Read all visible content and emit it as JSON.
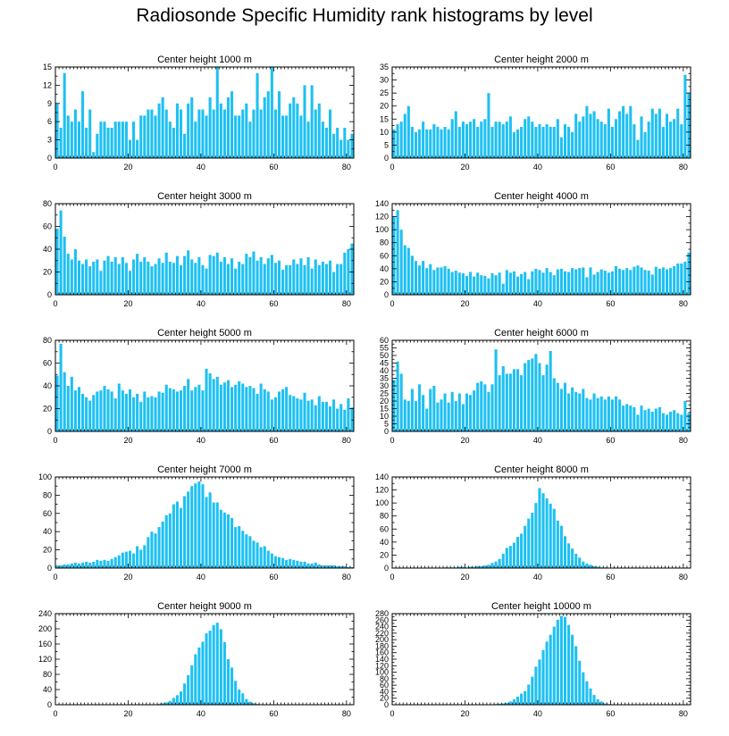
{
  "title": "Radiosonde Specific Humidity rank histograms by level",
  "bar_color": "#1ec0f2",
  "chart_data": [
    {
      "type": "bar",
      "title": "Center height 1000 m",
      "xlim": [
        0,
        82
      ],
      "ylim": [
        0,
        15
      ],
      "xticks": [
        0,
        20,
        40,
        60,
        80
      ],
      "yticks": [
        0,
        3,
        6,
        9,
        12,
        15
      ],
      "values": [
        9,
        5,
        14,
        7,
        6,
        8,
        6,
        11,
        5,
        8,
        1,
        4,
        6,
        6,
        5,
        5,
        6,
        6,
        6,
        6,
        3,
        6,
        3,
        7,
        7,
        8,
        8,
        7,
        9,
        10,
        8,
        6,
        5,
        9,
        8,
        4,
        9,
        10,
        6,
        8,
        8,
        7,
        10,
        8,
        15,
        9,
        8,
        10,
        11,
        7,
        7,
        8,
        9,
        6,
        8,
        14,
        8,
        10,
        11,
        15,
        8,
        11,
        7,
        7,
        9,
        10,
        9,
        7,
        12,
        6,
        12,
        8,
        9,
        6,
        5,
        8,
        4,
        5,
        3,
        5,
        3,
        4
      ]
    },
    {
      "type": "bar",
      "title": "Center height 2000 m",
      "xlim": [
        0,
        82
      ],
      "ylim": [
        0,
        35
      ],
      "xticks": [
        0,
        20,
        40,
        60,
        80
      ],
      "yticks": [
        0,
        5,
        10,
        15,
        20,
        25,
        30,
        35
      ],
      "values": [
        11,
        13,
        14,
        17,
        20,
        12,
        10,
        11,
        14,
        11,
        11,
        13,
        12,
        11,
        12,
        11,
        15,
        18,
        12,
        14,
        13,
        14,
        15,
        12,
        14,
        15,
        25,
        12,
        14,
        14,
        13,
        14,
        16,
        10,
        11,
        12,
        15,
        16,
        14,
        12,
        13,
        12,
        13,
        12,
        12,
        15,
        8,
        13,
        12,
        10,
        17,
        14,
        16,
        20,
        17,
        18,
        15,
        14,
        13,
        19,
        12,
        15,
        18,
        20,
        17,
        20,
        13,
        7,
        16,
        10,
        14,
        19,
        17,
        19,
        12,
        17,
        14,
        15,
        19,
        13,
        32,
        25
      ]
    },
    {
      "type": "bar",
      "title": "Center height 3000 m",
      "xlim": [
        0,
        82
      ],
      "ylim": [
        0,
        80
      ],
      "xticks": [
        0,
        20,
        40,
        60,
        80
      ],
      "yticks": [
        0,
        20,
        40,
        60,
        80
      ],
      "values": [
        58,
        74,
        51,
        36,
        31,
        40,
        30,
        27,
        31,
        25,
        29,
        31,
        21,
        30,
        34,
        29,
        33,
        27,
        33,
        28,
        21,
        31,
        36,
        29,
        33,
        29,
        25,
        27,
        32,
        28,
        37,
        29,
        28,
        34,
        26,
        34,
        39,
        31,
        28,
        33,
        26,
        23,
        35,
        34,
        37,
        29,
        33,
        27,
        32,
        23,
        29,
        27,
        36,
        33,
        38,
        30,
        33,
        27,
        32,
        35,
        28,
        30,
        22,
        26,
        26,
        31,
        27,
        32,
        26,
        33,
        23,
        31,
        26,
        29,
        27,
        30,
        20,
        27,
        27,
        37,
        40,
        45
      ]
    },
    {
      "type": "bar",
      "title": "Center height 4000 m",
      "xlim": [
        0,
        82
      ],
      "ylim": [
        0,
        140
      ],
      "xticks": [
        0,
        20,
        40,
        60,
        80
      ],
      "yticks": [
        0,
        20,
        40,
        60,
        80,
        100,
        120,
        140
      ],
      "values": [
        120,
        130,
        100,
        76,
        72,
        60,
        52,
        45,
        52,
        41,
        47,
        38,
        42,
        42,
        44,
        40,
        35,
        37,
        34,
        33,
        29,
        35,
        28,
        34,
        30,
        29,
        25,
        33,
        30,
        34,
        17,
        38,
        34,
        36,
        28,
        32,
        35,
        24,
        36,
        40,
        38,
        34,
        41,
        35,
        30,
        39,
        40,
        36,
        35,
        41,
        39,
        41,
        42,
        27,
        42,
        31,
        35,
        39,
        37,
        34,
        36,
        44,
        40,
        38,
        41,
        38,
        43,
        45,
        42,
        38,
        37,
        31,
        43,
        40,
        42,
        39,
        41,
        44,
        48,
        48,
        51,
        65
      ]
    },
    {
      "type": "bar",
      "title": "Center height 5000 m",
      "xlim": [
        0,
        82
      ],
      "ylim": [
        0,
        80
      ],
      "xticks": [
        0,
        20,
        40,
        60,
        80
      ],
      "yticks": [
        0,
        20,
        40,
        60,
        80
      ],
      "values": [
        49,
        77,
        52,
        40,
        48,
        36,
        39,
        33,
        30,
        27,
        32,
        35,
        36,
        40,
        37,
        35,
        29,
        42,
        36,
        33,
        37,
        30,
        33,
        26,
        35,
        30,
        31,
        30,
        35,
        34,
        41,
        38,
        37,
        35,
        36,
        40,
        46,
        36,
        39,
        41,
        36,
        55,
        51,
        46,
        48,
        41,
        43,
        45,
        39,
        41,
        44,
        42,
        39,
        40,
        38,
        33,
        42,
        37,
        35,
        28,
        30,
        35,
        37,
        39,
        32,
        31,
        29,
        28,
        34,
        27,
        28,
        23,
        31,
        26,
        26,
        22,
        28,
        20,
        24,
        19,
        29,
        21
      ]
    },
    {
      "type": "bar",
      "title": "Center height 6000 m",
      "xlim": [
        0,
        82
      ],
      "ylim": [
        0,
        60
      ],
      "xticks": [
        0,
        20,
        40,
        60,
        80
      ],
      "yticks": [
        0,
        5,
        10,
        15,
        20,
        25,
        30,
        35,
        40,
        45,
        50,
        55,
        60
      ],
      "values": [
        34,
        46,
        38,
        21,
        20,
        28,
        20,
        31,
        24,
        15,
        28,
        30,
        19,
        21,
        25,
        19,
        26,
        20,
        25,
        18,
        25,
        24,
        27,
        32,
        33,
        31,
        26,
        31,
        54,
        37,
        43,
        38,
        38,
        41,
        41,
        37,
        45,
        47,
        48,
        51,
        45,
        37,
        44,
        53,
        35,
        32,
        28,
        32,
        25,
        29,
        26,
        25,
        28,
        22,
        21,
        25,
        22,
        23,
        21,
        23,
        21,
        23,
        21,
        17,
        18,
        17,
        16,
        11,
        17,
        14,
        15,
        13,
        15,
        16,
        12,
        11,
        13,
        14,
        12,
        11,
        20,
        12
      ]
    },
    {
      "type": "bar",
      "title": "Center height 7000 m",
      "xlim": [
        0,
        82
      ],
      "ylim": [
        0,
        100
      ],
      "xticks": [
        0,
        20,
        40,
        60,
        80
      ],
      "yticks": [
        0,
        20,
        40,
        60,
        80,
        100
      ],
      "values": [
        3,
        3,
        4,
        4,
        5,
        6,
        5,
        6,
        7,
        6,
        7,
        9,
        8,
        9,
        8,
        10,
        12,
        14,
        17,
        18,
        19,
        16,
        24,
        20,
        25,
        34,
        40,
        38,
        45,
        51,
        58,
        60,
        70,
        73,
        66,
        79,
        84,
        90,
        93,
        95,
        92,
        78,
        83,
        72,
        72,
        64,
        61,
        59,
        55,
        45,
        46,
        41,
        37,
        35,
        30,
        28,
        23,
        24,
        19,
        16,
        13,
        12,
        11,
        9,
        10,
        9,
        8,
        7,
        7,
        5,
        5,
        6,
        4,
        3,
        3,
        3,
        3,
        2,
        2,
        2,
        1,
        1
      ]
    },
    {
      "type": "bar",
      "title": "Center height 8000 m",
      "xlim": [
        0,
        82
      ],
      "ylim": [
        0,
        140
      ],
      "xticks": [
        0,
        20,
        40,
        60,
        80
      ],
      "yticks": [
        0,
        20,
        40,
        60,
        80,
        100,
        120,
        140
      ],
      "values": [
        0,
        0,
        0,
        0,
        0,
        0,
        0,
        0,
        0,
        0,
        0,
        0,
        0,
        0,
        1,
        1,
        1,
        1,
        2,
        2,
        1,
        2,
        2,
        3,
        3,
        4,
        5,
        8,
        10,
        14,
        22,
        31,
        34,
        39,
        48,
        53,
        65,
        76,
        85,
        100,
        123,
        115,
        107,
        99,
        91,
        73,
        65,
        49,
        38,
        30,
        22,
        16,
        10,
        7,
        5,
        3,
        2,
        1,
        1,
        0,
        0,
        0,
        0,
        0,
        0,
        0,
        0,
        0,
        0,
        0,
        0,
        0,
        0,
        0,
        0,
        0,
        0,
        0,
        0,
        0,
        0,
        0
      ]
    },
    {
      "type": "bar",
      "title": "Center height 9000 m",
      "xlim": [
        0,
        82
      ],
      "ylim": [
        0,
        240
      ],
      "xticks": [
        0,
        20,
        40,
        60,
        80
      ],
      "yticks": [
        0,
        40,
        80,
        120,
        160,
        200,
        240
      ],
      "values": [
        0,
        0,
        0,
        0,
        0,
        0,
        0,
        0,
        0,
        0,
        0,
        0,
        0,
        0,
        0,
        0,
        0,
        0,
        0,
        0,
        0,
        0,
        0,
        0,
        0,
        0,
        0,
        1,
        2,
        4,
        6,
        10,
        18,
        25,
        35,
        56,
        78,
        104,
        133,
        151,
        166,
        188,
        195,
        210,
        216,
        199,
        165,
        120,
        98,
        63,
        40,
        30,
        15,
        8,
        4,
        2,
        1,
        0,
        0,
        0,
        0,
        0,
        0,
        0,
        0,
        0,
        0,
        0,
        0,
        0,
        0,
        0,
        0,
        0,
        0,
        0,
        0,
        0,
        0,
        0,
        0,
        0
      ]
    },
    {
      "type": "bar",
      "title": "Center height 10000 m",
      "xlim": [
        0,
        82
      ],
      "ylim": [
        0,
        280
      ],
      "xticks": [
        0,
        20,
        40,
        60,
        80
      ],
      "yticks": [
        0,
        20,
        40,
        60,
        80,
        100,
        120,
        140,
        160,
        180,
        200,
        220,
        240,
        260,
        280
      ],
      "values": [
        0,
        0,
        0,
        0,
        0,
        0,
        0,
        0,
        0,
        0,
        0,
        0,
        0,
        0,
        0,
        0,
        0,
        0,
        0,
        0,
        0,
        0,
        0,
        0,
        0,
        0,
        0,
        1,
        2,
        3,
        4,
        6,
        10,
        17,
        25,
        34,
        42,
        62,
        86,
        117,
        139,
        168,
        194,
        215,
        240,
        261,
        273,
        270,
        245,
        215,
        180,
        135,
        100,
        72,
        50,
        30,
        17,
        10,
        4,
        2,
        1,
        0,
        0,
        0,
        0,
        0,
        0,
        0,
        0,
        0,
        0,
        0,
        0,
        0,
        0,
        0,
        0,
        0,
        0,
        0,
        0,
        0
      ]
    }
  ]
}
